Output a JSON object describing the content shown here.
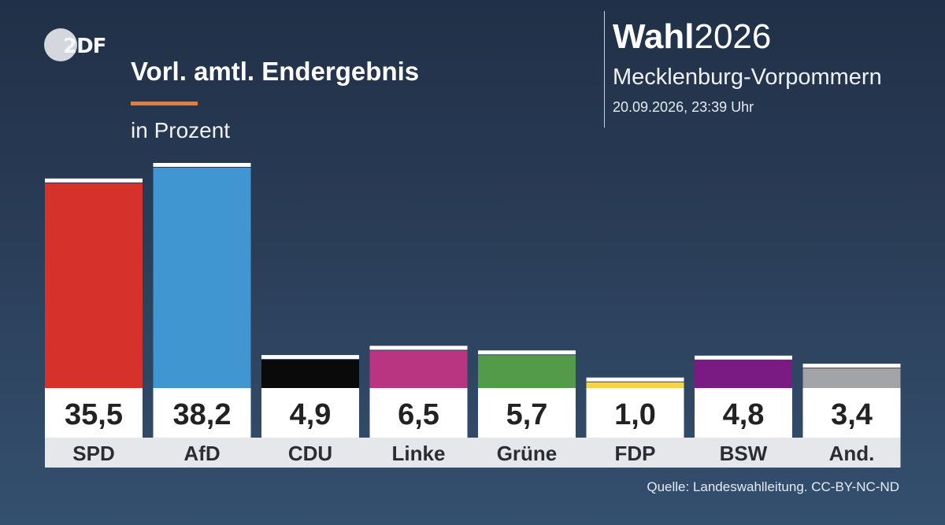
{
  "header": {
    "logo_text": "2DF",
    "title": "Vorl. amtl. Endergebnis",
    "subtitle": "in Prozent",
    "brand_bold": "Wahl",
    "brand_year": "2026",
    "region": "Mecklenburg-Vorpommern",
    "timestamp": "20.09.2026, 23:39 Uhr"
  },
  "footer": {
    "source": "Quelle: Landeswahlleitung. CC-BY-NC-ND"
  },
  "chart_data": {
    "type": "bar",
    "title": "Vorl. amtl. Endergebnis",
    "subtitle": "in Prozent",
    "categories": [
      "SPD",
      "AfD",
      "CDU",
      "Linke",
      "Grüne",
      "FDP",
      "BSW",
      "And."
    ],
    "values": [
      35.5,
      38.2,
      4.9,
      6.5,
      5.7,
      1.0,
      4.8,
      3.4
    ],
    "value_labels": [
      "35,5",
      "38,2",
      "4,9",
      "6,5",
      "5,7",
      "1,0",
      "4,8",
      "3,4"
    ],
    "colors": [
      "#d7312b",
      "#3f96d0",
      "#0a0a0a",
      "#b93581",
      "#549b49",
      "#f4d44a",
      "#7a1a83",
      "#a3a4a8"
    ],
    "change_marker_color": "#ffffff",
    "ylim": [
      0,
      38.2
    ],
    "grid": false,
    "legend": "none"
  }
}
